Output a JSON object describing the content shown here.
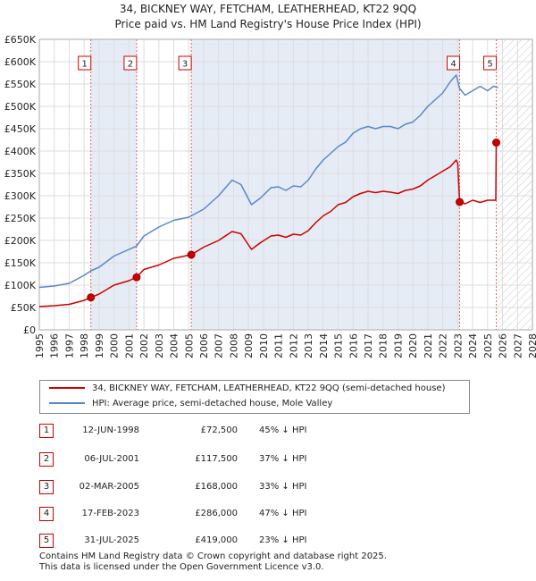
{
  "title_line1": "34, BICKNEY WAY, FETCHAM, LEATHERHEAD, KT22 9QQ",
  "title_line2": "Price paid vs. HM Land Registry's House Price Index (HPI)",
  "legend": {
    "property_label": "34, BICKNEY WAY, FETCHAM, LEATHERHEAD, KT22 9QQ (semi-detached house)",
    "hpi_label": "HPI: Average price, semi-detached house, Mole Valley"
  },
  "sales": [
    {
      "num": "1",
      "date": "12-JUN-1998",
      "price": "£72,500",
      "hpi": "45% ↓ HPI"
    },
    {
      "num": "2",
      "date": "06-JUL-2001",
      "price": "£117,500",
      "hpi": "37% ↓ HPI"
    },
    {
      "num": "3",
      "date": "02-MAR-2005",
      "price": "£168,000",
      "hpi": "33% ↓ HPI"
    },
    {
      "num": "4",
      "date": "17-FEB-2023",
      "price": "£286,000",
      "hpi": "47% ↓ HPI"
    },
    {
      "num": "5",
      "date": "31-JUL-2025",
      "price": "£419,000",
      "hpi": "23% ↓ HPI"
    }
  ],
  "footer_line1": "Contains HM Land Registry data © Crown copyright and database right 2025.",
  "footer_line2": "This data is licensed under the Open Government Licence v3.0.",
  "colors": {
    "property": "#cc0000",
    "hpi": "#5a87c8",
    "shade": "#e6ecf5",
    "marker_line": "#dd6666",
    "grid": "#dddddd"
  },
  "chart_data": {
    "type": "line",
    "title": "34, BICKNEY WAY, FETCHAM, LEATHERHEAD, KT22 9QQ",
    "xlabel": "",
    "ylabel": "",
    "xlim": [
      1995,
      2028
    ],
    "ylim": [
      0,
      650000
    ],
    "y_ticks": [
      0,
      50000,
      100000,
      150000,
      200000,
      250000,
      300000,
      350000,
      400000,
      450000,
      500000,
      550000,
      600000,
      650000
    ],
    "y_tick_labels": [
      "£0",
      "£50K",
      "£100K",
      "£150K",
      "£200K",
      "£250K",
      "£300K",
      "£350K",
      "£400K",
      "£450K",
      "£500K",
      "£550K",
      "£600K",
      "£650K"
    ],
    "x_ticks": [
      1995,
      1996,
      1997,
      1998,
      1999,
      2000,
      2001,
      2002,
      2003,
      2004,
      2005,
      2006,
      2007,
      2008,
      2009,
      2010,
      2011,
      2012,
      2013,
      2014,
      2015,
      2016,
      2017,
      2018,
      2019,
      2020,
      2021,
      2022,
      2023,
      2024,
      2025,
      2026,
      2027,
      2028
    ],
    "x_tick_labels": [
      "1995",
      "1996",
      "1997",
      "1998",
      "1999",
      "2000",
      "2001",
      "2002",
      "2003",
      "2004",
      "2005",
      "2006",
      "2007",
      "2008",
      "2009",
      "2010",
      "2011",
      "2012",
      "2013",
      "2014",
      "2015",
      "2016",
      "2017",
      "2018",
      "2019",
      "2020",
      "2021",
      "2022",
      "2023",
      "2024",
      "2025",
      "2026",
      "2027",
      "2028"
    ],
    "forecast_start": 2025.7,
    "shaded_periods": [
      [
        1998.45,
        2001.5
      ],
      [
        2005.17,
        2023.13
      ]
    ],
    "series": [
      {
        "name": "HPI: Average price, semi-detached house, Mole Valley",
        "x": [
          1995.0,
          1996.0,
          1997.0,
          1998.0,
          1998.45,
          1999.0,
          2000.0,
          2001.0,
          2001.5,
          2002.0,
          2003.0,
          2004.0,
          2005.0,
          2005.17,
          2006.0,
          2007.0,
          2007.9,
          2008.5,
          2009.2,
          2009.8,
          2010.5,
          2011.0,
          2011.5,
          2012.0,
          2012.5,
          2013.0,
          2013.5,
          2014.0,
          2014.5,
          2015.0,
          2015.5,
          2016.0,
          2016.5,
          2017.0,
          2017.5,
          2018.0,
          2018.5,
          2019.0,
          2019.5,
          2020.0,
          2020.5,
          2021.0,
          2021.5,
          2022.0,
          2022.5,
          2022.9,
          2023.13,
          2023.5,
          2024.0,
          2024.5,
          2025.0,
          2025.4,
          2025.7
        ],
        "values": [
          95000,
          98000,
          104000,
          122000,
          132000,
          140000,
          165000,
          180000,
          187000,
          210000,
          230000,
          245000,
          252000,
          255000,
          270000,
          300000,
          335000,
          325000,
          280000,
          295000,
          318000,
          320000,
          312000,
          322000,
          320000,
          335000,
          360000,
          380000,
          395000,
          410000,
          420000,
          440000,
          450000,
          455000,
          450000,
          455000,
          455000,
          450000,
          460000,
          465000,
          480000,
          500000,
          515000,
          530000,
          555000,
          570000,
          540000,
          525000,
          535000,
          545000,
          535000,
          545000,
          542000
        ]
      },
      {
        "name": "34, BICKNEY WAY, FETCHAM, LEATHERHEAD, KT22 9QQ (semi-detached house)",
        "x": [
          1995.0,
          1996.0,
          1997.0,
          1998.0,
          1998.45,
          1999.0,
          2000.0,
          2001.0,
          2001.5,
          2002.0,
          2003.0,
          2004.0,
          2005.0,
          2005.17,
          2006.0,
          2007.0,
          2007.9,
          2008.5,
          2009.2,
          2009.8,
          2010.5,
          2011.0,
          2011.5,
          2012.0,
          2012.5,
          2013.0,
          2013.5,
          2014.0,
          2014.5,
          2015.0,
          2015.5,
          2016.0,
          2016.5,
          2017.0,
          2017.5,
          2018.0,
          2018.5,
          2019.0,
          2019.5,
          2020.0,
          2020.5,
          2021.0,
          2021.5,
          2022.0,
          2022.5,
          2022.9,
          2023.0,
          2023.13,
          2023.5,
          2024.0,
          2024.5,
          2025.0,
          2025.55,
          2025.58
        ],
        "values": [
          52000,
          54000,
          57000,
          66000,
          72500,
          80000,
          100000,
          110000,
          117500,
          135000,
          145000,
          160000,
          167000,
          168000,
          185000,
          200000,
          220000,
          215000,
          180000,
          195000,
          210000,
          212000,
          207000,
          214000,
          212000,
          222000,
          240000,
          255000,
          265000,
          280000,
          285000,
          298000,
          305000,
          310000,
          307000,
          310000,
          308000,
          305000,
          312000,
          315000,
          322000,
          335000,
          345000,
          355000,
          365000,
          380000,
          372000,
          286000,
          282000,
          290000,
          285000,
          290000,
          290000,
          419000
        ]
      }
    ],
    "sales_points": [
      {
        "label": "1",
        "x": 1998.45,
        "value": 72500
      },
      {
        "label": "2",
        "x": 2001.51,
        "value": 117500
      },
      {
        "label": "3",
        "x": 2005.17,
        "value": 168000
      },
      {
        "label": "4",
        "x": 2023.13,
        "value": 286000
      },
      {
        "label": "5",
        "x": 2025.58,
        "value": 419000
      }
    ]
  }
}
